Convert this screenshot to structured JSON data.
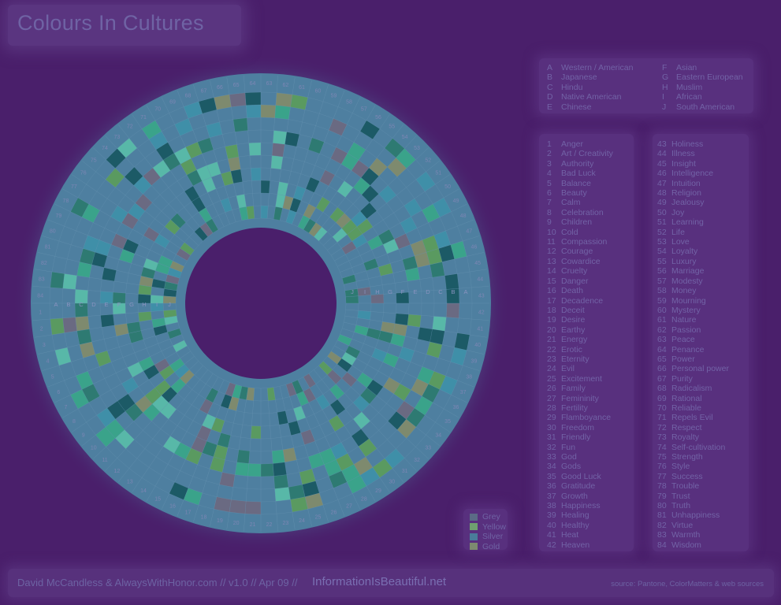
{
  "title": "Colours In Cultures",
  "footer": {
    "credit": "David McCandless & AlwaysWithHonor.com  // v1.0 // Apr 09 //",
    "site": "InformationIsBeautiful.net",
    "source": "source: Pantone, ColorMatters & web sources"
  },
  "colors": {
    "background": "#4a1f6b",
    "ring": "#4e7fa0",
    "cell_palette": [
      "#1c5a66",
      "#2e7a72",
      "#3aa38a",
      "#5a9a60",
      "#7e8a6e",
      "#6a6a82",
      "#3f8fa8",
      "#58b8a8"
    ]
  },
  "cultures": [
    {
      "letter": "A",
      "name": "Western / American"
    },
    {
      "letter": "B",
      "name": "Japanese"
    },
    {
      "letter": "C",
      "name": "Hindu"
    },
    {
      "letter": "D",
      "name": "Native American"
    },
    {
      "letter": "E",
      "name": "Chinese"
    },
    {
      "letter": "F",
      "name": "Asian"
    },
    {
      "letter": "G",
      "name": "Eastern European"
    },
    {
      "letter": "H",
      "name": "Muslim"
    },
    {
      "letter": "I",
      "name": "African"
    },
    {
      "letter": "J",
      "name": "South American"
    }
  ],
  "meanings": [
    {
      "n": "1",
      "label": "Anger"
    },
    {
      "n": "2",
      "label": "Art / Creativity"
    },
    {
      "n": "3",
      "label": "Authority"
    },
    {
      "n": "4",
      "label": "Bad Luck"
    },
    {
      "n": "5",
      "label": "Balance"
    },
    {
      "n": "6",
      "label": "Beauty"
    },
    {
      "n": "7",
      "label": "Calm"
    },
    {
      "n": "8",
      "label": "Celebration"
    },
    {
      "n": "9",
      "label": "Children"
    },
    {
      "n": "10",
      "label": "Cold"
    },
    {
      "n": "11",
      "label": "Compassion"
    },
    {
      "n": "12",
      "label": "Courage"
    },
    {
      "n": "13",
      "label": "Cowardice"
    },
    {
      "n": "14",
      "label": "Cruelty"
    },
    {
      "n": "15",
      "label": "Danger"
    },
    {
      "n": "16",
      "label": "Death"
    },
    {
      "n": "17",
      "label": "Decadence"
    },
    {
      "n": "18",
      "label": "Deceit"
    },
    {
      "n": "19",
      "label": "Desire"
    },
    {
      "n": "20",
      "label": "Earthy"
    },
    {
      "n": "21",
      "label": "Energy"
    },
    {
      "n": "22",
      "label": "Erotic"
    },
    {
      "n": "23",
      "label": "Eternity"
    },
    {
      "n": "24",
      "label": "Evil"
    },
    {
      "n": "25",
      "label": "Excitement"
    },
    {
      "n": "26",
      "label": "Family"
    },
    {
      "n": "27",
      "label": "Femininity"
    },
    {
      "n": "28",
      "label": "Fertility"
    },
    {
      "n": "29",
      "label": "Flamboyance"
    },
    {
      "n": "30",
      "label": "Freedom"
    },
    {
      "n": "31",
      "label": "Friendly"
    },
    {
      "n": "32",
      "label": "Fun"
    },
    {
      "n": "33",
      "label": "God"
    },
    {
      "n": "34",
      "label": "Gods"
    },
    {
      "n": "35",
      "label": "Good Luck"
    },
    {
      "n": "36",
      "label": "Gratitude"
    },
    {
      "n": "37",
      "label": "Growth"
    },
    {
      "n": "38",
      "label": "Happiness"
    },
    {
      "n": "39",
      "label": "Healing"
    },
    {
      "n": "40",
      "label": "Healthy"
    },
    {
      "n": "41",
      "label": "Heat"
    },
    {
      "n": "42",
      "label": "Heaven"
    },
    {
      "n": "43",
      "label": "Holiness"
    },
    {
      "n": "44",
      "label": "Illness"
    },
    {
      "n": "45",
      "label": "Insight"
    },
    {
      "n": "46",
      "label": "Intelligence"
    },
    {
      "n": "47",
      "label": "Intuition"
    },
    {
      "n": "48",
      "label": "Religion"
    },
    {
      "n": "49",
      "label": "Jealousy"
    },
    {
      "n": "50",
      "label": "Joy"
    },
    {
      "n": "51",
      "label": "Learning"
    },
    {
      "n": "52",
      "label": "Life"
    },
    {
      "n": "53",
      "label": "Love"
    },
    {
      "n": "54",
      "label": "Loyalty"
    },
    {
      "n": "55",
      "label": "Luxury"
    },
    {
      "n": "56",
      "label": "Marriage"
    },
    {
      "n": "57",
      "label": "Modesty"
    },
    {
      "n": "58",
      "label": "Money"
    },
    {
      "n": "59",
      "label": "Mourning"
    },
    {
      "n": "60",
      "label": "Mystery"
    },
    {
      "n": "61",
      "label": "Nature"
    },
    {
      "n": "62",
      "label": "Passion"
    },
    {
      "n": "63",
      "label": "Peace"
    },
    {
      "n": "64",
      "label": "Penance"
    },
    {
      "n": "65",
      "label": "Power"
    },
    {
      "n": "66",
      "label": "Personal power"
    },
    {
      "n": "67",
      "label": "Purity"
    },
    {
      "n": "68",
      "label": "Radicalism"
    },
    {
      "n": "69",
      "label": "Rational"
    },
    {
      "n": "70",
      "label": "Reliable"
    },
    {
      "n": "71",
      "label": "Repels Evil"
    },
    {
      "n": "72",
      "label": "Respect"
    },
    {
      "n": "73",
      "label": "Royalty"
    },
    {
      "n": "74",
      "label": "Self-cultivation"
    },
    {
      "n": "75",
      "label": "Strength"
    },
    {
      "n": "76",
      "label": "Style"
    },
    {
      "n": "77",
      "label": "Success"
    },
    {
      "n": "78",
      "label": "Trouble"
    },
    {
      "n": "79",
      "label": "Trust"
    },
    {
      "n": "80",
      "label": "Truth"
    },
    {
      "n": "81",
      "label": "Unhappiness"
    },
    {
      "n": "82",
      "label": "Virtue"
    },
    {
      "n": "83",
      "label": "Warmth"
    },
    {
      "n": "84",
      "label": "Wisdom"
    }
  ],
  "color_key": [
    {
      "label": "Grey",
      "color": "#5b6a86"
    },
    {
      "label": "Yellow",
      "color": "#6fa070"
    },
    {
      "label": "Silver",
      "color": "#4a7c9a"
    },
    {
      "label": "Gold",
      "color": "#7d8a70"
    }
  ],
  "chart_data": {
    "type": "heatmap",
    "title": "Colours In Cultures",
    "rings": [
      "A",
      "B",
      "C",
      "D",
      "E",
      "F",
      "G",
      "H",
      "I",
      "J"
    ],
    "sectors": 84,
    "sector_ticks": [
      "1",
      "2",
      "3",
      "4",
      "5",
      "6",
      "7",
      "8",
      "9",
      "10",
      "11",
      "12",
      "13",
      "14",
      "15",
      "16",
      "17",
      "18",
      "19",
      "20",
      "21",
      "22",
      "23",
      "24",
      "25",
      "26",
      "27",
      "28",
      "29",
      "30",
      "31",
      "32",
      "33",
      "34",
      "35",
      "36",
      "37",
      "38",
      "39",
      "40",
      "41",
      "42",
      "43",
      "44",
      "45",
      "46",
      "47",
      "48",
      "49",
      "50",
      "51",
      "52",
      "53",
      "54",
      "55",
      "56",
      "57",
      "58",
      "59",
      "60",
      "61",
      "62",
      "63",
      "64",
      "65",
      "66",
      "67",
      "68",
      "69",
      "70",
      "71",
      "72",
      "73",
      "74",
      "75",
      "76",
      "77",
      "78",
      "79",
      "80",
      "81",
      "82",
      "83",
      "84"
    ]
  }
}
